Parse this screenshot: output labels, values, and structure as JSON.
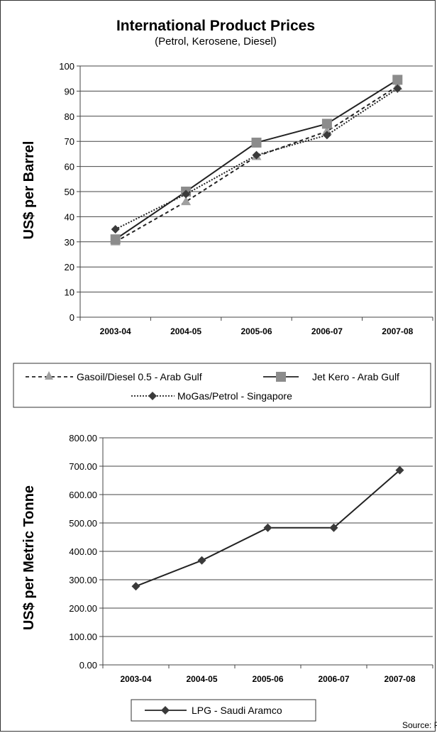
{
  "chart_data": [
    {
      "type": "line",
      "title": "International Product Prices",
      "subtitle": "(Petrol, Kerosene, Diesel)",
      "ylabel": "US$ per Barrel",
      "xlabel": "",
      "categories": [
        "2003-04",
        "2004-05",
        "2005-06",
        "2006-07",
        "2007-08"
      ],
      "ylim": [
        0,
        100
      ],
      "yticks": [
        0,
        10,
        20,
        30,
        40,
        50,
        60,
        70,
        80,
        90,
        100
      ],
      "ytick_labels": [
        "0",
        "10",
        "20",
        "30",
        "40",
        "50",
        "60",
        "70",
        "80",
        "90",
        "100"
      ],
      "grid": true,
      "legend_position": "bottom",
      "series": [
        {
          "name": "Gasoil/Diesel 0.5 - Arab Gulf",
          "values": [
            30,
            46,
            64,
            74,
            92
          ],
          "marker": "triangle",
          "dash": "dashed",
          "color": "#a0a0a0"
        },
        {
          "name": "Jet Kero - Arab Gulf",
          "values": [
            31,
            50,
            69.5,
            77,
            94.5
          ],
          "marker": "square",
          "dash": "solid",
          "color": "#8c8c8c"
        },
        {
          "name": "MoGas/Petrol - Singapore",
          "values": [
            35,
            49,
            64.5,
            72.5,
            91
          ],
          "marker": "diamond",
          "dash": "dotted",
          "color": "#3a3a3a"
        }
      ]
    },
    {
      "type": "line",
      "title": "",
      "ylabel": "US$ per Metric Tonne",
      "xlabel": "",
      "categories": [
        "2003-04",
        "2004-05",
        "2005-06",
        "2006-07",
        "2007-08"
      ],
      "ylim": [
        0,
        800
      ],
      "yticks": [
        0,
        100,
        200,
        300,
        400,
        500,
        600,
        700,
        800
      ],
      "ytick_labels": [
        "0.00",
        "100.00",
        "200.00",
        "300.00",
        "400.00",
        "500.00",
        "600.00",
        "700.00",
        "800.00"
      ],
      "grid": true,
      "legend_position": "bottom",
      "series": [
        {
          "name": "LPG - Saudi Aramco",
          "values": [
            277,
            368,
            483,
            483,
            686
          ],
          "marker": "diamond",
          "dash": "solid",
          "color": "#3a3a3a"
        }
      ]
    }
  ],
  "source": "Source: Platts"
}
